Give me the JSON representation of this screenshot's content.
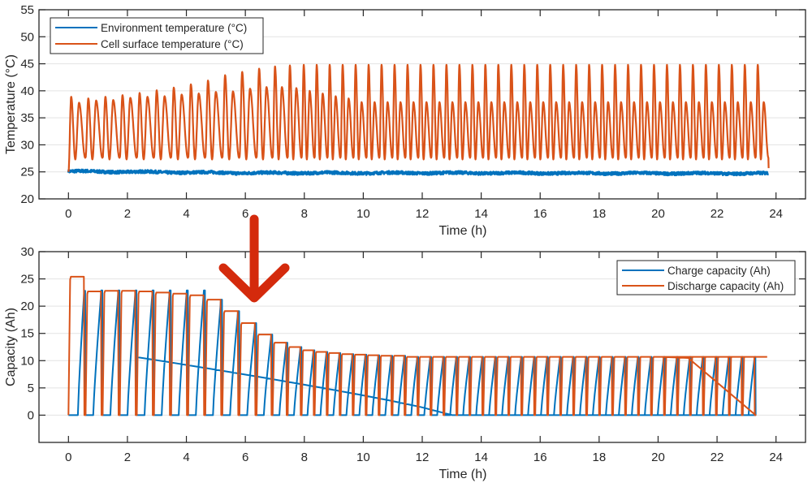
{
  "colors": {
    "series_blue": "#0072BD",
    "series_orange": "#D95319",
    "arrow": "#D42A0C",
    "axis": "#262626",
    "grid": "#e3e3e3"
  },
  "annotation": {
    "type": "arrow-down",
    "at_x_hours": 6.3,
    "icon": "red-down-arrow"
  },
  "chart_data": [
    {
      "type": "line",
      "title": "",
      "xlabel": "Time (h)",
      "ylabel": "Temperature (°C)",
      "xlim": [
        -1,
        25
      ],
      "ylim": [
        20,
        55
      ],
      "xticks": [
        0,
        2,
        4,
        6,
        8,
        10,
        12,
        14,
        16,
        18,
        20,
        22,
        24
      ],
      "xtick_labels": [
        "0",
        "2",
        "4",
        "6",
        "8",
        "10",
        "12",
        "14",
        "16",
        "18",
        "20",
        "22",
        "24"
      ],
      "yticks": [
        20,
        25,
        30,
        35,
        40,
        45,
        50,
        55
      ],
      "ytick_labels": [
        "20",
        "25",
        "30",
        "35",
        "40",
        "45",
        "50",
        "55"
      ],
      "grid": "horizontal",
      "legend_position": "top-left",
      "series": [
        {
          "name": "Environment temperature (°C)",
          "color": "#0072BD",
          "description_values": {
            "t_start": 0,
            "t_end": 23.75,
            "mean": 24.8,
            "early_mean": 25.1,
            "noise": 0.25
          }
        },
        {
          "name": "Cell surface temperature (°C)",
          "color": "#D95319",
          "start_value": 25,
          "end_value": 25.7,
          "trough_value": 27.6,
          "tall_peaks": [
            38.9,
            38.6,
            38.9,
            39.2,
            39.6,
            40.1,
            40.6,
            41.2,
            41.9,
            42.9,
            43.5,
            44.1,
            44.5,
            44.7,
            44.8
          ],
          "tall_peak_late": 44.8,
          "small_peaks": [
            37.8,
            38.2,
            38.3,
            38.7,
            38.9,
            39.0,
            39.3,
            39.5,
            39.8,
            39.9,
            40.4,
            40.7,
            40.7,
            40.5,
            40.0,
            39.5,
            39.0,
            38.6
          ],
          "small_peak_late": 37.9
        }
      ]
    },
    {
      "type": "line",
      "title": "",
      "xlabel": "Time (h)",
      "ylabel": "Capacity (Ah)",
      "xlim": [
        -1,
        25
      ],
      "ylim": [
        -5,
        30
      ],
      "xticks": [
        0,
        2,
        4,
        6,
        8,
        10,
        12,
        14,
        16,
        18,
        20,
        22,
        24
      ],
      "xtick_labels": [
        "0",
        "2",
        "4",
        "6",
        "8",
        "10",
        "12",
        "14",
        "16",
        "18",
        "20",
        "22",
        "24"
      ],
      "yticks": [
        0,
        5,
        10,
        15,
        20,
        25,
        30
      ],
      "ytick_labels": [
        "0",
        "5",
        "10",
        "15",
        "20",
        "25",
        "30"
      ],
      "grid": "horizontal",
      "legend_position": "top-right",
      "cycle_period_early_h": 0.58,
      "cycle_period_late_h": 0.44,
      "end_time_h": 23.7,
      "series": [
        {
          "name": "Charge capacity (Ah)",
          "color": "#0072BD",
          "plateaus": [
            22.8,
            22.9,
            22.9,
            22.9,
            22.9,
            22.9,
            22.9,
            22.9,
            21.2,
            19.1,
            16.9,
            14.8,
            13.3,
            12.5,
            11.9,
            11.6,
            11.4,
            11.2,
            11.1,
            11.0,
            10.9,
            10.9
          ],
          "plateau_late": 10.7
        },
        {
          "name": "Discharge capacity (Ah)",
          "color": "#D95319",
          "plateaus": [
            25.4,
            22.7,
            22.8,
            22.8,
            22.7,
            22.5,
            22.3,
            22.0,
            21.2,
            19.1,
            16.9,
            14.8,
            13.3,
            12.5,
            11.9,
            11.6,
            11.4,
            11.2,
            11.1,
            11.0,
            10.9,
            10.9
          ],
          "plateau_late": 10.7
        }
      ]
    }
  ]
}
